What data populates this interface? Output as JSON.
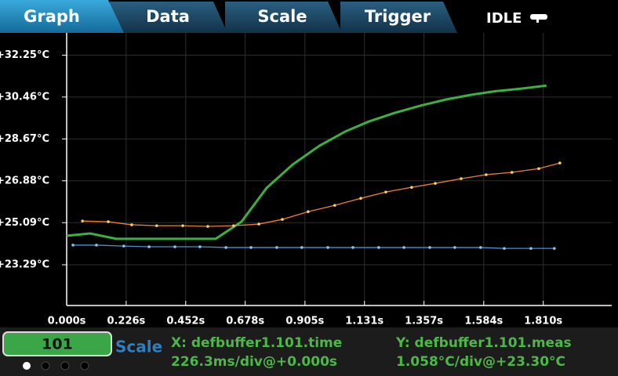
{
  "ui": {
    "tabs": [
      "Graph",
      "Data",
      "Scale",
      "Trigger"
    ],
    "status": "IDLE",
    "footer": {
      "reading": "101",
      "mode": "Scale",
      "x_source": "X: defbuffer1.101.time",
      "x_scale": "226.3ms/div@+0.000s",
      "y_source": "Y: defbuffer1.101.meas",
      "y_scale": "1.058°C/div@+23.30°C"
    }
  },
  "chart_data": {
    "type": "line",
    "grid": true,
    "xlim": [
      0,
      2.07
    ],
    "ylim": [
      21.55,
      33.2
    ],
    "xticks": [
      {
        "value": 0,
        "label": "0.000s"
      },
      {
        "value": 0.226,
        "label": "0.226s"
      },
      {
        "value": 0.452,
        "label": "0.452s"
      },
      {
        "value": 0.678,
        "label": "0.678s"
      },
      {
        "value": 0.905,
        "label": "0.905s"
      },
      {
        "value": 1.131,
        "label": "1.131s"
      },
      {
        "value": 1.357,
        "label": "1.357s"
      },
      {
        "value": 1.584,
        "label": "1.584s"
      },
      {
        "value": 1.81,
        "label": "1.810s"
      }
    ],
    "yticks": [
      {
        "value": 23.29,
        "label": "+23.29°C"
      },
      {
        "value": 25.09,
        "label": "+25.09°C"
      },
      {
        "value": 26.88,
        "label": "+26.88°C"
      },
      {
        "value": 28.67,
        "label": "+28.67°C"
      },
      {
        "value": 30.46,
        "label": "+30.46°C"
      },
      {
        "value": 32.25,
        "label": "+32.25°C"
      }
    ],
    "series": [
      {
        "color": "#3cb043",
        "width": 3,
        "x": [
          0,
          0.089,
          0.188,
          0.283,
          0.372,
          0.477,
          0.566,
          0.664,
          0.759,
          0.858,
          0.959,
          1.057,
          1.147,
          1.245,
          1.34,
          1.439,
          1.534,
          1.629,
          1.727,
          1.822
        ],
        "values": [
          24.53,
          24.63,
          24.4,
          24.4,
          24.4,
          24.4,
          24.4,
          25.13,
          26.57,
          27.57,
          28.37,
          28.98,
          29.41,
          29.78,
          30.08,
          30.35,
          30.55,
          30.71,
          30.82,
          30.95
        ]
      },
      {
        "color": "#f07d3a",
        "width": 1.3,
        "marker": "#f4d35e",
        "x": [
          0.06,
          0.158,
          0.247,
          0.342,
          0.441,
          0.536,
          0.634,
          0.73,
          0.819,
          0.917,
          1.018,
          1.117,
          1.212,
          1.31,
          1.4,
          1.498,
          1.593,
          1.691,
          1.793,
          1.873
        ],
        "values": [
          25.16,
          25.13,
          25.0,
          24.96,
          24.96,
          24.93,
          24.96,
          25.03,
          25.23,
          25.56,
          25.83,
          26.13,
          26.4,
          26.6,
          26.77,
          26.97,
          27.14,
          27.24,
          27.4,
          27.64
        ]
      },
      {
        "color": "#4a8fd4",
        "width": 1.3,
        "marker": "#8cc4f0",
        "x": [
          0.024,
          0.113,
          0.217,
          0.313,
          0.411,
          0.506,
          0.605,
          0.7,
          0.798,
          0.893,
          0.992,
          1.087,
          1.185,
          1.281,
          1.379,
          1.474,
          1.572,
          1.662,
          1.763,
          1.852
        ],
        "values": [
          24.13,
          24.13,
          24.09,
          24.06,
          24.06,
          24.06,
          24.03,
          24.03,
          24.03,
          24.03,
          24.03,
          24.03,
          24.03,
          24.03,
          24.03,
          24.03,
          24.03,
          23.99,
          23.99,
          23.99
        ]
      }
    ]
  }
}
